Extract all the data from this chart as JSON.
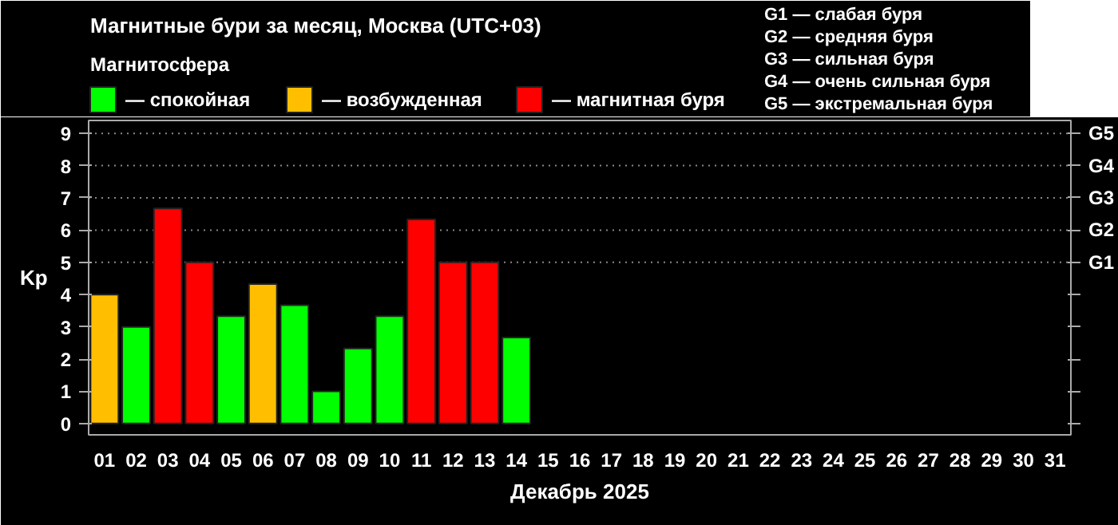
{
  "chart_data": {
    "type": "bar",
    "title": "Магнитные бури за месяц, Москва (UTC+03)",
    "xlabel": "Декабрь 2025",
    "ylabel": "Kp",
    "legend_title": "Магнитосфера",
    "legend": "top left",
    "categories": [
      "01",
      "02",
      "03",
      "04",
      "05",
      "06",
      "07",
      "08",
      "09",
      "10",
      "11",
      "12",
      "13",
      "14",
      "15",
      "16",
      "17",
      "18",
      "19",
      "20",
      "21",
      "22",
      "23",
      "24",
      "25",
      "26",
      "27",
      "28",
      "29",
      "30",
      "31"
    ],
    "series": [
      {
        "name": "— спокойная",
        "color": "#00ff00",
        "values": [
          null,
          3,
          null,
          null,
          3.33,
          null,
          3.67,
          1,
          2.33,
          3.33,
          null,
          null,
          null,
          2.67,
          null,
          null,
          null,
          null,
          null,
          null,
          null,
          null,
          null,
          null,
          null,
          null,
          null,
          null,
          null,
          null,
          null
        ]
      },
      {
        "name": "— возбужденная",
        "color": "#ffbf00",
        "values": [
          4,
          null,
          null,
          null,
          null,
          4.33,
          null,
          null,
          null,
          null,
          null,
          null,
          null,
          null,
          null,
          null,
          null,
          null,
          null,
          null,
          null,
          null,
          null,
          null,
          null,
          null,
          null,
          null,
          null,
          null,
          null
        ]
      },
      {
        "name": "— магнитная буря",
        "color": "#ff0000",
        "values": [
          null,
          null,
          6.67,
          5,
          null,
          null,
          null,
          null,
          null,
          null,
          6.33,
          5,
          5,
          null,
          null,
          null,
          null,
          null,
          null,
          null,
          null,
          null,
          null,
          null,
          null,
          null,
          null,
          null,
          null,
          null,
          null
        ]
      }
    ],
    "ylim": [
      -0.35,
      9.4
    ],
    "yticks": [
      0,
      1,
      2,
      3,
      4,
      5,
      6,
      7,
      8,
      9
    ],
    "ref_lines": [
      {
        "axis": "y",
        "value": 5,
        "label": "G1",
        "color": "#888888",
        "line_style": "dotted"
      },
      {
        "axis": "y",
        "value": 6,
        "label": "G2",
        "color": "#888888",
        "line_style": "dotted"
      },
      {
        "axis": "y",
        "value": 7,
        "label": "G3",
        "color": "#888888",
        "line_style": "dotted"
      },
      {
        "axis": "y",
        "value": 8,
        "label": "G4",
        "color": "#888888",
        "line_style": "dotted"
      },
      {
        "axis": "y",
        "value": 9,
        "label": "G5",
        "color": "#888888",
        "line_style": "dotted"
      }
    ],
    "annotations": [
      "G1 — слабая буря",
      "G2 — средняя буря",
      "G3 — сильная буря",
      "G4 — очень сильная буря",
      "G5 — экстремальная буря"
    ]
  }
}
